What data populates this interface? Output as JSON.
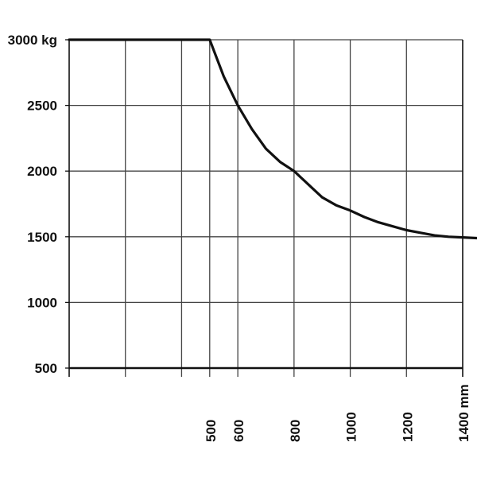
{
  "chart_data": {
    "type": "line",
    "title": "",
    "xlabel": "",
    "ylabel": "",
    "xlim": [
      0,
      1400
    ],
    "ylim": [
      500,
      3000
    ],
    "x_ticks": [
      500,
      600,
      800,
      1000,
      1200,
      1400
    ],
    "x_tick_labels": [
      "500",
      "600",
      "800",
      "1000",
      "1200",
      "1400 mm"
    ],
    "y_ticks": [
      3000,
      2500,
      2000,
      1500,
      1000,
      500
    ],
    "y_tick_labels": [
      "3000 kg",
      "2500",
      "2000",
      "1500",
      "1000",
      "500"
    ],
    "grid": true,
    "series": [
      {
        "x": [
          0,
          500,
          550,
          600,
          650,
          700,
          750,
          800,
          850,
          900,
          950,
          1000,
          1050,
          1100,
          1150,
          1200,
          1250,
          1300,
          1350,
          1400,
          1450
        ],
        "y": [
          3000,
          3000,
          2720,
          2500,
          2320,
          2170,
          2070,
          2000,
          1900,
          1800,
          1740,
          1700,
          1650,
          1610,
          1580,
          1550,
          1530,
          1510,
          1500,
          1495,
          1490
        ]
      }
    ],
    "colors": {
      "curve": "#111111",
      "grid": "#444444",
      "axis": "#111111"
    }
  }
}
